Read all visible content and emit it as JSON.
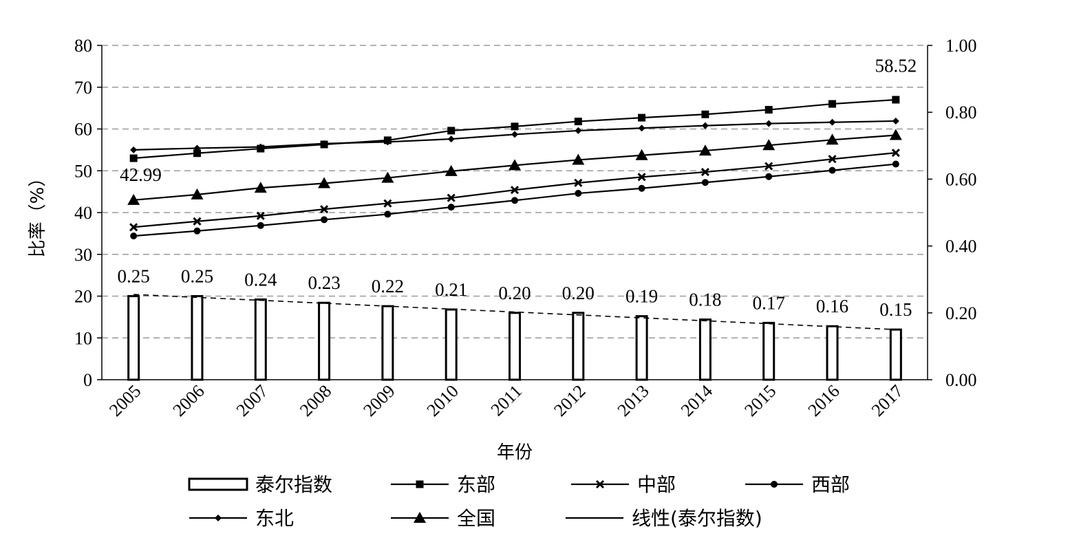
{
  "chart_data": {
    "type": "bar",
    "categories": [
      "2005",
      "2006",
      "2007",
      "2008",
      "2009",
      "2010",
      "2011",
      "2012",
      "2013",
      "2014",
      "2015",
      "2016",
      "2017"
    ],
    "xlabel": "年份",
    "ylabel": "比率（%）",
    "ylim": [
      0,
      80
    ],
    "y_ticks": [
      0,
      10,
      20,
      30,
      40,
      50,
      60,
      70,
      80
    ],
    "y2lim": [
      0,
      1.0
    ],
    "y2_ticks": [
      "0.00",
      "0.20",
      "0.40",
      "0.60",
      "0.80",
      "1.00"
    ],
    "grid": "horizontal dashed",
    "legend_position": "bottom",
    "bar_series": {
      "name": "泰尔指数",
      "axis": "right",
      "values": [
        0.25,
        0.25,
        0.24,
        0.23,
        0.22,
        0.21,
        0.2,
        0.2,
        0.19,
        0.18,
        0.17,
        0.16,
        0.15
      ],
      "labels": [
        "0.25",
        "0.25",
        "0.24",
        "0.23",
        "0.22",
        "0.21",
        "0.20",
        "0.20",
        "0.19",
        "0.18",
        "0.17",
        "0.16",
        "0.15"
      ]
    },
    "trendline": {
      "name": "线性(泰尔指数)",
      "axis": "right",
      "style": "dashed",
      "start": 0.255,
      "end": 0.15
    },
    "line_series": [
      {
        "name": "东部",
        "marker": "square",
        "values": [
          53.0,
          54.2,
          55.3,
          56.3,
          57.3,
          59.6,
          60.6,
          61.8,
          62.7,
          63.5,
          64.6,
          66.0,
          67.0
        ]
      },
      {
        "name": "中部",
        "marker": "x",
        "values": [
          36.5,
          37.9,
          39.2,
          40.8,
          42.2,
          43.5,
          45.4,
          47.1,
          48.5,
          49.7,
          51.1,
          52.8,
          54.3
        ]
      },
      {
        "name": "西部",
        "marker": "circle",
        "values": [
          34.4,
          35.6,
          36.9,
          38.3,
          39.6,
          41.3,
          42.9,
          44.6,
          45.8,
          47.2,
          48.6,
          50.1,
          51.6
        ]
      },
      {
        "name": "东北",
        "marker": "diamond",
        "values": [
          55.0,
          55.4,
          55.7,
          56.5,
          56.9,
          57.6,
          58.7,
          59.6,
          60.2,
          60.8,
          61.3,
          61.6,
          61.9
        ]
      },
      {
        "name": "全国",
        "marker": "triangle",
        "values": [
          42.99,
          44.3,
          45.9,
          47.0,
          48.3,
          49.9,
          51.3,
          52.6,
          53.7,
          54.8,
          56.1,
          57.4,
          58.52
        ]
      }
    ],
    "annotations": [
      {
        "series": "全国",
        "index": 0,
        "text": "42.99"
      },
      {
        "series": "全国",
        "index": 12,
        "text": "58.52"
      }
    ]
  }
}
